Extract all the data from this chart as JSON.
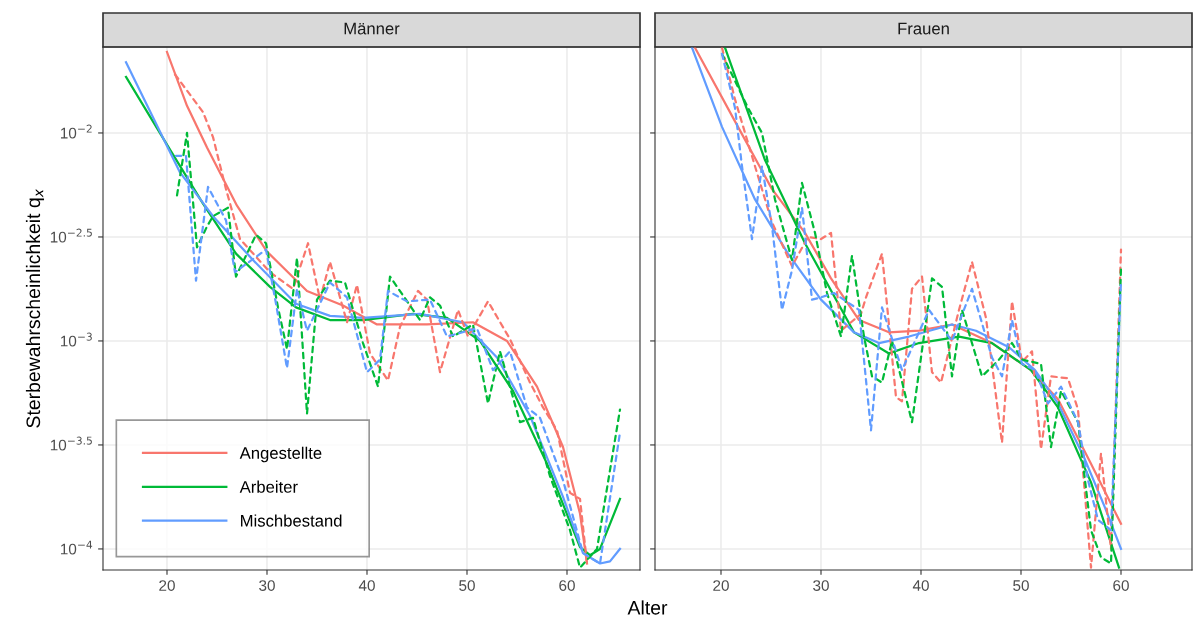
{
  "chart_data": [
    {
      "type": "line",
      "title": "Männer",
      "ylabel": "Sterbewahrscheinlichkeit q$_{x}$",
      "log": true,
      "grid": true,
      "legend": "bottom left",
      "line_style": "solid",
      "xlim": [
        13.6,
        67.3
      ],
      "xticks": [
        20,
        30,
        40,
        50,
        60
      ],
      "ylim": [
        7.92e-05,
        0.0259
      ],
      "yticks": [
        {
          "value": 0.0001,
          "label": "10$^{−4}$"
        },
        {
          "value": 0.0003162,
          "label": "10$^{−3.5}$"
        },
        {
          "value": 0.001,
          "label": "10$^{−3}$"
        },
        {
          "value": 0.003162,
          "label": "10$^{−2.5}$"
        },
        {
          "value": 0.01,
          "label": "10$^{−2}$"
        }
      ],
      "series": [
        {
          "name": "Angestellte",
          "color": "#f8766d",
          "x": [
            20,
            22,
            24,
            27,
            30,
            34,
            37.6,
            41,
            46,
            50.6,
            54,
            57,
            59.6,
            61.3,
            62
          ],
          "values": [
            0.0245,
            0.0135,
            0.00851,
            0.00447,
            0.00269,
            0.00174,
            0.00148,
            0.0012,
            0.0012,
            0.00123,
            0.001,
            0.000603,
            0.000309,
            0.000148,
            8.51e-05
          ]
        },
        {
          "name": "Arbeiter",
          "color": "#00ba38",
          "x": [
            15.9,
            20.3,
            23.6,
            26.9,
            30.3,
            32.9,
            36.3,
            39.6,
            44.6,
            48,
            51.3,
            54.6,
            58,
            61.3,
            62.3,
            63.3,
            65.3
          ],
          "values": [
            0.0186,
            0.00832,
            0.00457,
            0.00263,
            0.00182,
            0.00145,
            0.00126,
            0.00126,
            0.00135,
            0.00129,
            0.001,
            0.000575,
            0.000257,
            0.000102,
            9.33e-05,
            0.0001,
            0.000174
          ]
        },
        {
          "name": "Mischbestand",
          "color": "#619cff",
          "x": [
            15.9,
            21.3,
            24.6,
            28.6,
            32.9,
            36.3,
            39.6,
            45.3,
            49.6,
            53,
            56.3,
            59.6,
            61.6,
            63.3,
            64.3,
            65.3
          ],
          "values": [
            0.0219,
            0.00646,
            0.00398,
            0.00245,
            0.00151,
            0.00132,
            0.00129,
            0.00135,
            0.00123,
            0.000832,
            0.000437,
            0.000178,
            9.55e-05,
            8.51e-05,
            8.71e-05,
            0.0001
          ]
        },
        {
          "color": "#f8766d",
          "line_style": "dashed",
          "x": [
            20.8,
            23.6,
            24.6,
            25.9,
            27.3,
            30.3,
            32.6,
            34.1,
            35.3,
            36.3,
            38,
            39,
            40.3,
            42.1,
            43.3,
            45.1,
            46,
            47.3,
            49.1,
            50.1,
            52.1,
            54.3,
            56.3,
            57.6,
            59,
            60.3,
            61.3,
            62
          ],
          "values": [
            0.0191,
            0.0126,
            0.00955,
            0.00537,
            0.00309,
            0.00214,
            0.00178,
            0.00295,
            0.00158,
            0.0024,
            0.00123,
            0.00186,
            0.000871,
            0.000646,
            0.00117,
            0.00174,
            0.00158,
            0.000708,
            0.00141,
            0.00105,
            0.00155,
            0.00102,
            0.000631,
            0.000479,
            0.000372,
            0.000186,
            0.000174,
            8.51e-05
          ]
        },
        {
          "color": "#00ba38",
          "line_style": "dashed",
          "x": [
            21,
            22,
            23,
            24,
            24.6,
            26.1,
            26.9,
            28.9,
            29.9,
            31.1,
            32,
            33,
            34,
            35,
            36.3,
            37.8,
            39.6,
            41.1,
            42.3,
            45.3,
            46.3,
            47.3,
            48.6,
            50.6,
            52.1,
            53.3,
            55.3,
            56.6,
            58.3,
            60.3,
            61.3,
            63,
            65.3
          ],
          "values": [
            0.00501,
            0.01,
            0.00282,
            0.00355,
            0.00398,
            0.00437,
            0.00204,
            0.00324,
            0.00295,
            0.00145,
            0.000912,
            0.00251,
            0.000447,
            0.00158,
            0.00195,
            0.00191,
            0.000977,
            0.000603,
            0.00204,
            0.00126,
            0.00162,
            0.00148,
            0.00105,
            0.0012,
            0.000501,
            0.000891,
            0.000407,
            0.000427,
            0.000224,
            0.000123,
            8.13e-05,
            0.0001,
            0.000468
          ]
        },
        {
          "color": "#619cff",
          "line_style": "dashed",
          "x": [
            20.9,
            21.9,
            22.9,
            24.1,
            25.9,
            26.8,
            27.9,
            29.9,
            30.9,
            32,
            33,
            34,
            36.3,
            38,
            40,
            41.3,
            42.1,
            44,
            46.3,
            48,
            51,
            52.6,
            54.3,
            56,
            57.3,
            59.6,
            61.6,
            63.3,
            65.3
          ],
          "values": [
            0.00776,
            0.00776,
            0.00195,
            0.0055,
            0.0038,
            0.00214,
            0.00234,
            0.00275,
            0.00151,
            0.000741,
            0.00178,
            0.00112,
            0.00191,
            0.00162,
            0.000708,
            0.000813,
            0.00174,
            0.00155,
            0.00158,
            0.00105,
            0.00115,
            0.000724,
            0.000891,
            0.000479,
            0.000427,
            0.000214,
            9.55e-05,
            8.51e-05,
            0.000363
          ]
        }
      ]
    },
    {
      "type": "line",
      "title": "Frauen",
      "xlabel": "Alter",
      "log": true,
      "grid": true,
      "line_style": "solid",
      "tick_labels": "x",
      "xlim": [
        13.4,
        67.1
      ],
      "xticks": [
        20,
        30,
        40,
        50,
        60
      ],
      "ylim": [
        7.92e-05,
        0.0259
      ],
      "yticks": [
        {
          "value": 0.0001,
          "label": null
        },
        {
          "value": 0.0003162,
          "label": null
        },
        {
          "value": 0.001,
          "label": null
        },
        {
          "value": 0.003162,
          "label": null
        },
        {
          "value": 0.01,
          "label": null
        }
      ],
      "series": [
        {
          "color": "#f8766d",
          "x": [
            17.4,
            21.7,
            25.1,
            28.4,
            31,
            33.8,
            36.8,
            39.8,
            43.1,
            47.1,
            51,
            53.7,
            57,
            60
          ],
          "values": [
            0.0257,
            0.0107,
            0.00537,
            0.00331,
            0.002,
            0.00126,
            0.0011,
            0.00112,
            0.0012,
            0.000977,
            0.000724,
            0.000525,
            0.000257,
            0.000132
          ]
        },
        {
          "color": "#00ba38",
          "x": [
            20.4,
            24.4,
            28.4,
            33.3,
            36.8,
            39.8,
            43.8,
            47.1,
            51,
            53.7,
            57,
            59.8
          ],
          "values": [
            0.0257,
            0.00741,
            0.00295,
            0.0011,
            0.000871,
            0.000977,
            0.00105,
            0.000977,
            0.000724,
            0.000479,
            0.000209,
            8.13e-05
          ]
        },
        {
          "color": "#619cff",
          "x": [
            17.1,
            20.1,
            23.4,
            26.7,
            30,
            33.3,
            35.8,
            38.8,
            43.1,
            45.5,
            48.8,
            51.4,
            53.7,
            56.4,
            58.4,
            60
          ],
          "values": [
            0.0257,
            0.0107,
            0.00479,
            0.00263,
            0.00158,
            0.0011,
            0.000977,
            0.00105,
            0.0012,
            0.00112,
            0.000933,
            0.000724,
            0.000501,
            0.000269,
            0.000158,
            0.0001
          ]
        },
        {
          "color": "#f8766d",
          "line_style": "dashed",
          "x": [
            20.1,
            21.4,
            23.4,
            25.1,
            27.1,
            28.7,
            30,
            31,
            32,
            34,
            34.5,
            36.1,
            37.5,
            38.1,
            39.1,
            40.1,
            41.1,
            42,
            43.8,
            45.1,
            46.5,
            48.1,
            49.1,
            50.1,
            51.1,
            52,
            53,
            54.7,
            55.7,
            57,
            58,
            59,
            60
          ],
          "values": [
            0.0257,
            0.0145,
            0.00692,
            0.00372,
            0.00229,
            0.00316,
            0.00309,
            0.00331,
            0.00112,
            0.00135,
            0.00162,
            0.00263,
            0.000537,
            0.000513,
            0.00178,
            0.00204,
            0.000708,
            0.000631,
            0.00141,
            0.0024,
            0.00129,
            0.000324,
            0.00155,
            0.000794,
            0.000891,
            0.000302,
            0.000676,
            0.000661,
            0.000468,
            8.13e-05,
            0.000288,
            0.0001,
            0.00275
          ]
        },
        {
          "color": "#00ba38",
          "line_style": "dashed",
          "x": [
            20.1,
            21.4,
            22.7,
            24.1,
            25.4,
            27.1,
            28.1,
            29.4,
            30.6,
            32,
            33.1,
            34.3,
            35.1,
            36.1,
            37.1,
            39.1,
            41.1,
            42.1,
            43.1,
            44.1,
            46.1,
            47.8,
            49.1,
            50.1,
            52,
            53,
            54,
            55.7,
            57,
            58,
            59,
            60
          ],
          "values": [
            0.024,
            0.0178,
            0.0132,
            0.01,
            0.00479,
            0.00245,
            0.00575,
            0.00331,
            0.0017,
            0.00105,
            0.00257,
            0.00105,
            0.000676,
            0.000631,
            0.001,
            0.000407,
            0.002,
            0.00182,
            0.000676,
            0.00141,
            0.000676,
            0.000813,
            0.000977,
            0.000813,
            0.000776,
            0.000309,
            0.000575,
            0.000407,
            0.000123,
            9.12e-05,
            8.51e-05,
            0.00224
          ]
        },
        {
          "color": "#619cff",
          "line_style": "dashed",
          "x": [
            20.1,
            21.4,
            22.1,
            23.1,
            24.1,
            25.1,
            26.1,
            27.1,
            28.1,
            29.1,
            30,
            31.3,
            33.8,
            35,
            36.1,
            38.1,
            40.8,
            43.1,
            45.1,
            47.1,
            48.1,
            49.1,
            50.1,
            51.4,
            52.7,
            54,
            55.7,
            56.7,
            57.7,
            59,
            60
          ],
          "values": [
            0.024,
            0.0132,
            0.00692,
            0.00309,
            0.00692,
            0.00355,
            0.00141,
            0.00219,
            0.00437,
            0.00158,
            0.00162,
            0.0017,
            0.00141,
            0.000372,
            0.00145,
            0.000724,
            0.00141,
            0.001,
            0.00178,
            0.000832,
            0.000676,
            0.00126,
            0.000776,
            0.000724,
            0.000501,
            0.000603,
            0.000407,
            0.000214,
            0.000138,
            0.000123,
            0.00195
          ]
        }
      ]
    }
  ]
}
